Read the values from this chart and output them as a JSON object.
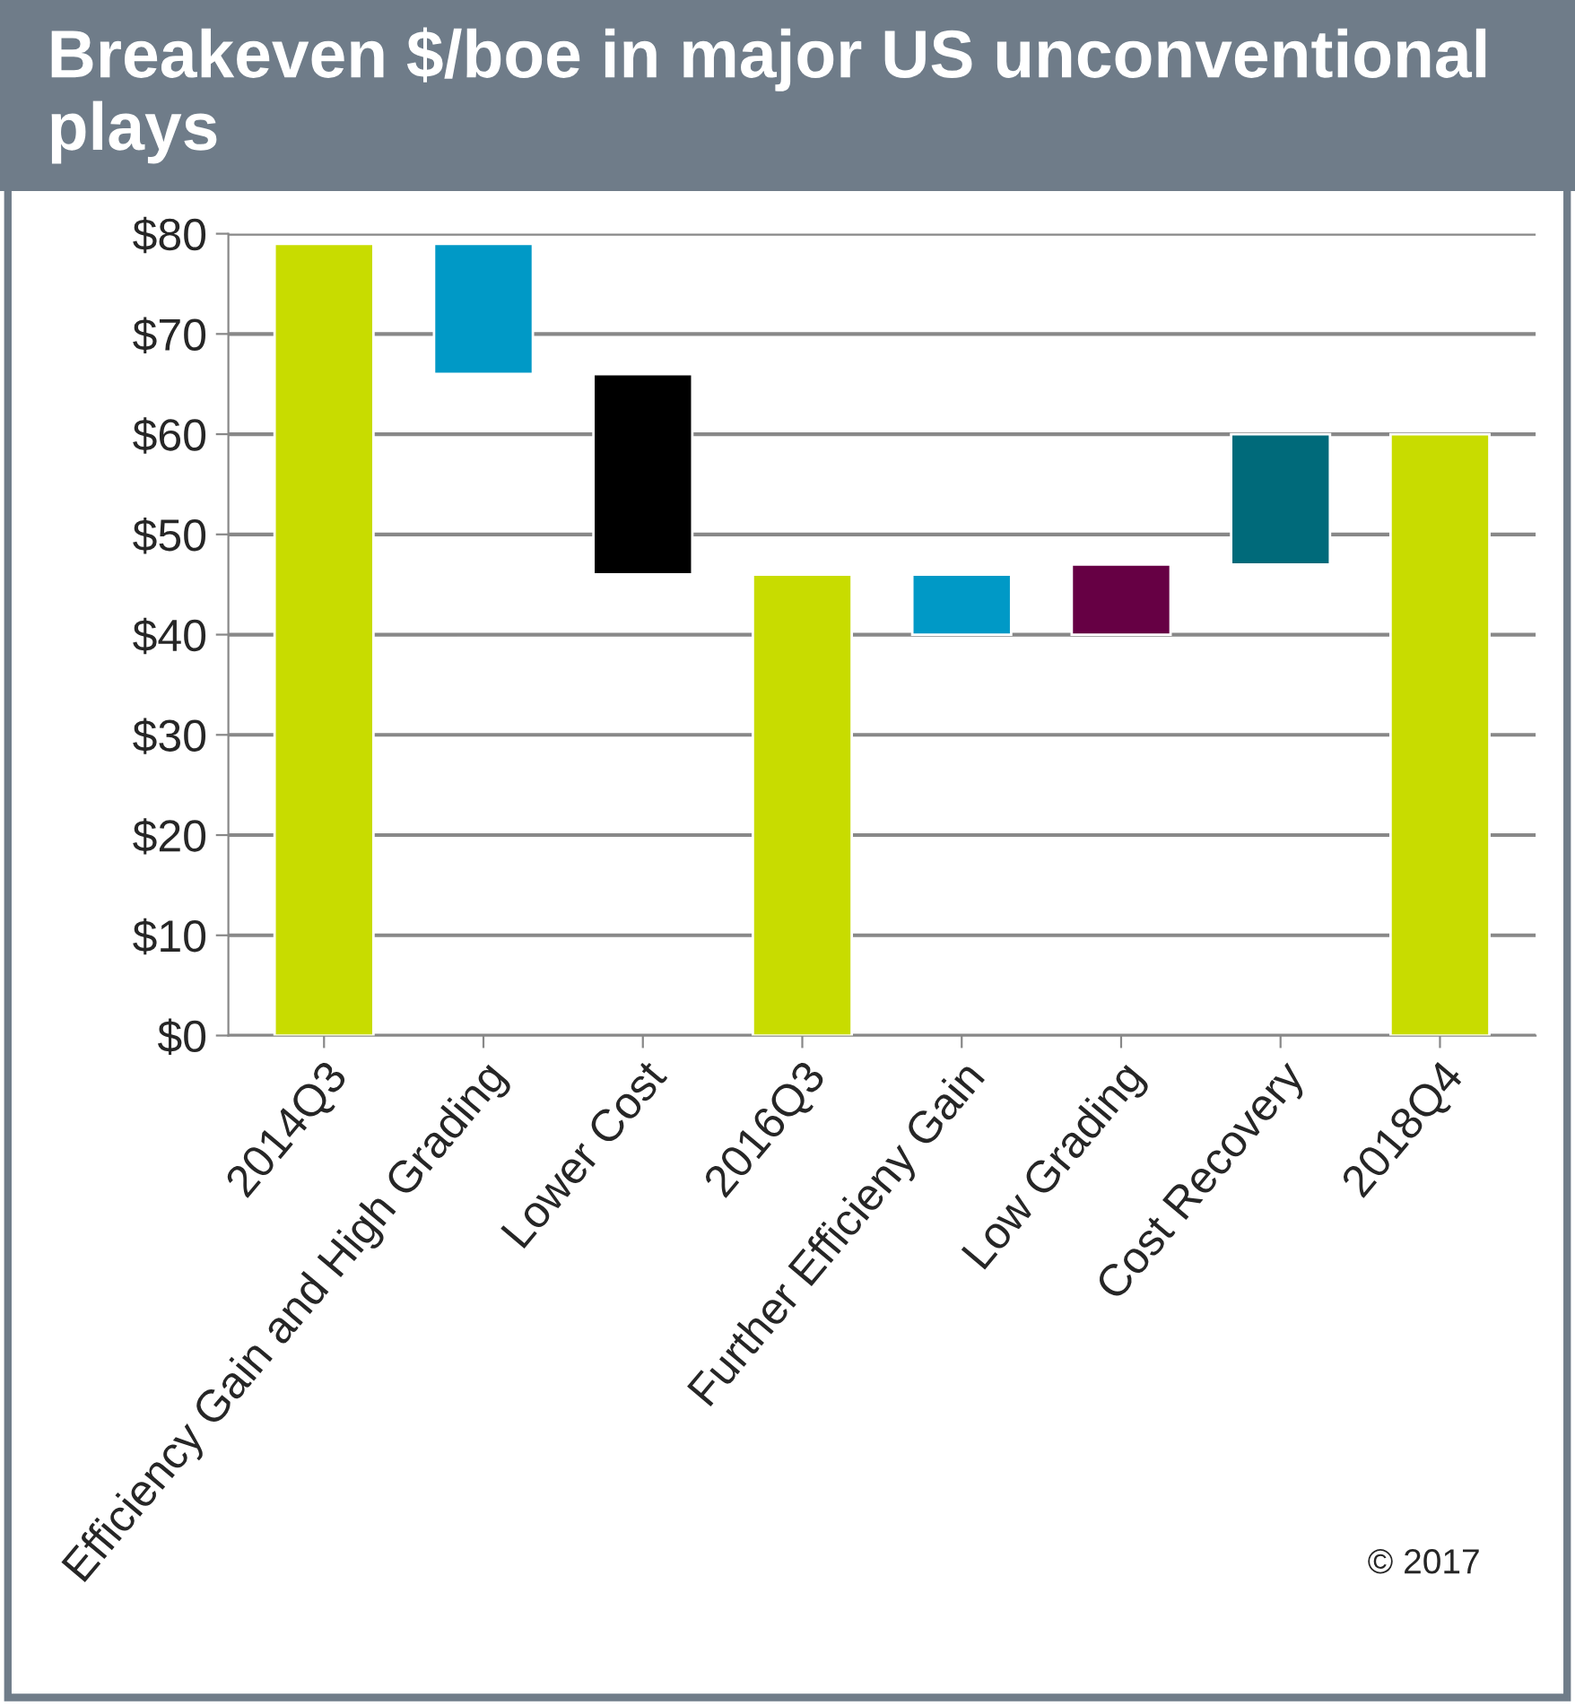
{
  "chart_data": {
    "type": "bar",
    "title": "Breakeven $/boe in major US unconventional plays",
    "categories": [
      "2014Q3",
      "Efficiency Gain and High Grading",
      "Lower Cost",
      "2016Q3",
      "Further Efficieny Gain",
      "Low Grading",
      "Cost Recovery",
      "2018Q4"
    ],
    "values": [
      79,
      13,
      20,
      46,
      6,
      7,
      13,
      60
    ],
    "base": [
      0,
      66,
      46,
      0,
      40,
      40,
      47,
      0
    ],
    "colors": [
      "#c8dc00",
      "#0099c6",
      "#000000",
      "#c8dc00",
      "#0099c6",
      "#660044",
      "#006a7a",
      "#c8dc00"
    ],
    "ylim": [
      0,
      80
    ],
    "yticks": [
      {
        "value": 0,
        "label": "$0"
      },
      {
        "value": 10,
        "label": "$10"
      },
      {
        "value": 20,
        "label": "$20"
      },
      {
        "value": 30,
        "label": "$30"
      },
      {
        "value": 40,
        "label": "$40"
      },
      {
        "value": 50,
        "label": "$50"
      },
      {
        "value": 60,
        "label": "$60"
      },
      {
        "value": 70,
        "label": "$70"
      },
      {
        "value": 80,
        "label": "$80"
      }
    ],
    "grid": "y",
    "annotations": [
      "© 2017"
    ]
  }
}
